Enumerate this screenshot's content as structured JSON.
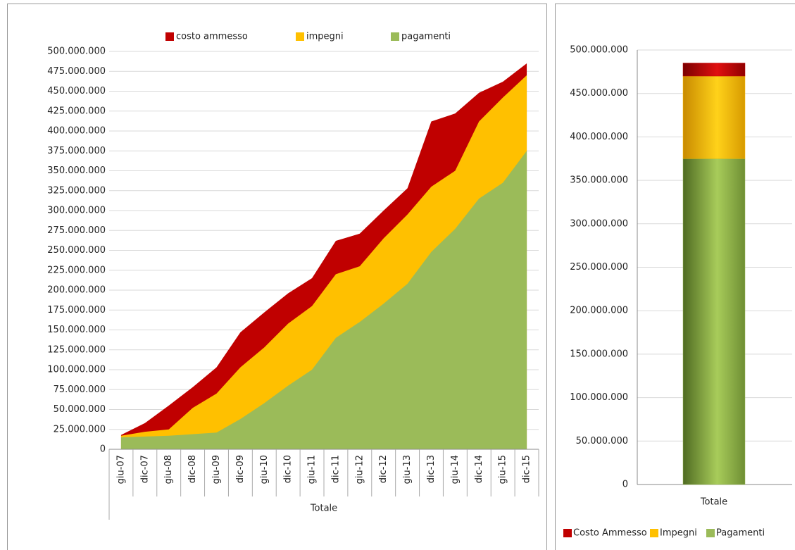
{
  "chart_data": [
    {
      "type": "area",
      "categories": [
        "giu-07",
        "dic-07",
        "giu-08",
        "dic-08",
        "giu-09",
        "dic-09",
        "giu-10",
        "dic-10",
        "giu-11",
        "dic-11",
        "giu-12",
        "dic-12",
        "giu-13",
        "dic-13",
        "giu-14",
        "dic-14",
        "giu-15",
        "dic-15"
      ],
      "x_group_label": "Totale",
      "series": [
        {
          "name": "costo ammesso",
          "color": "#c00000",
          "values": [
            18000000,
            33000000,
            55000000,
            78000000,
            103000000,
            147000000,
            172000000,
            196000000,
            215000000,
            262000000,
            271000000,
            300000000,
            328000000,
            412000000,
            422000000,
            448000000,
            462000000,
            485000000
          ]
        },
        {
          "name": "impegni",
          "color": "#ffc000",
          "values": [
            17000000,
            22000000,
            25000000,
            52000000,
            70000000,
            103000000,
            128000000,
            158000000,
            180000000,
            220000000,
            230000000,
            265000000,
            295000000,
            330000000,
            350000000,
            412000000,
            442000000,
            470000000
          ]
        },
        {
          "name": "pagamenti",
          "color": "#9bbb59",
          "values": [
            15000000,
            16000000,
            17000000,
            19000000,
            21000000,
            38000000,
            58000000,
            80000000,
            100000000,
            140000000,
            160000000,
            183000000,
            208000000,
            248000000,
            277000000,
            315000000,
            335000000,
            375000000
          ]
        }
      ],
      "ylim": [
        0,
        500000000
      ],
      "yticks": [
        0,
        {
          "value": 25000000,
          "label": "25.000.000"
        },
        {
          "value": 50000000,
          "label": "50.000.000"
        },
        {
          "value": 75000000,
          "label": "75.000.000"
        },
        {
          "value": 100000000,
          "label": "100.000.000"
        },
        {
          "value": 125000000,
          "label": "125.000.000"
        },
        {
          "value": 150000000,
          "label": "150.000.000"
        },
        {
          "value": 175000000,
          "label": "175.000.000"
        },
        {
          "value": 200000000,
          "label": "200.000.000"
        },
        {
          "value": 225000000,
          "label": "225.000.000"
        },
        {
          "value": 250000000,
          "label": "250.000.000"
        },
        {
          "value": 275000000,
          "label": "275.000.000"
        },
        {
          "value": 300000000,
          "label": "300.000.000"
        },
        {
          "value": 325000000,
          "label": "325.000.000"
        },
        {
          "value": 350000000,
          "label": "350.000.000"
        },
        {
          "value": 375000000,
          "label": "375.000.000"
        },
        {
          "value": 400000000,
          "label": "400.000.000"
        },
        {
          "value": 425000000,
          "label": "425.000.000"
        },
        {
          "value": 450000000,
          "label": "450.000.000"
        },
        {
          "value": 475000000,
          "label": "475.000.000"
        },
        {
          "value": 500000000,
          "label": "500.000.000"
        }
      ],
      "grid": true,
      "legend": "top"
    },
    {
      "type": "stacked_bar",
      "categories": [
        "Totale"
      ],
      "series": [
        {
          "name": "Costo Ammesso",
          "color": "#c00000",
          "values": [
            15000000
          ]
        },
        {
          "name": "Impegni",
          "color": "#ffc000",
          "values": [
            95000000
          ]
        },
        {
          "name": "Pagamenti",
          "color": "#9bbb59",
          "values": [
            375000000
          ]
        }
      ],
      "ylim": [
        0,
        500000000
      ],
      "yticks": [
        0,
        {
          "value": 50000000,
          "label": "50.000.000"
        },
        {
          "value": 100000000,
          "label": "100.000.000"
        },
        {
          "value": 150000000,
          "label": "150.000.000"
        },
        {
          "value": 200000000,
          "label": "200.000.000"
        },
        {
          "value": 250000000,
          "label": "250.000.000"
        },
        {
          "value": 300000000,
          "label": "300.000.000"
        },
        {
          "value": 350000000,
          "label": "350.000.000"
        },
        {
          "value": 400000000,
          "label": "400.000.000"
        },
        {
          "value": 450000000,
          "label": "450.000.000"
        },
        {
          "value": 500000000,
          "label": "500.000.000"
        }
      ],
      "grid": true,
      "legend": "bottom"
    }
  ]
}
